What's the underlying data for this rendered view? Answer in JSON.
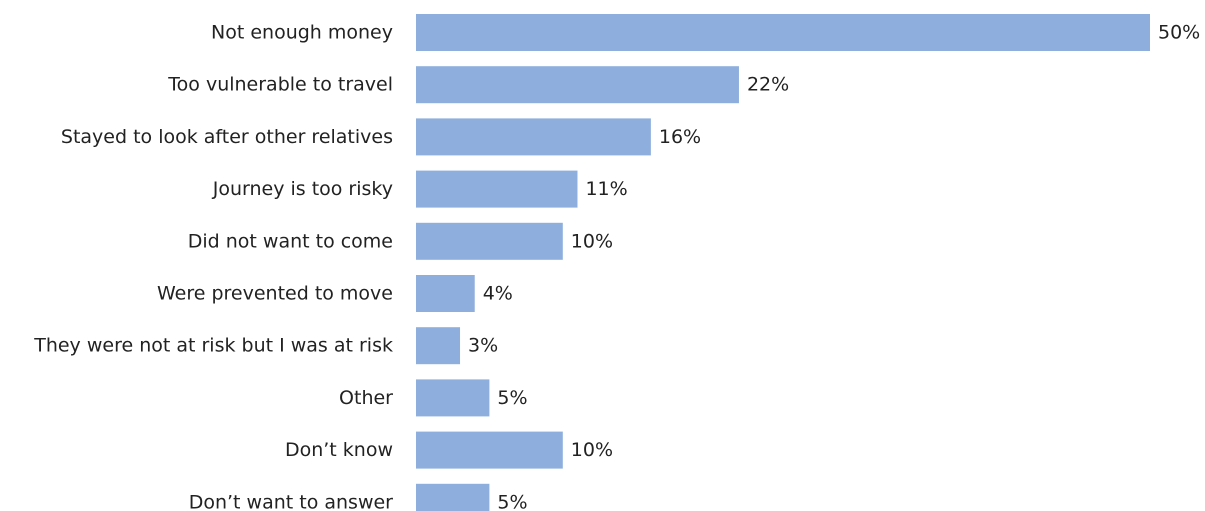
{
  "chart_data": {
    "type": "bar",
    "orientation": "horizontal",
    "categories": [
      "Not enough money",
      "Too vulnerable to travel",
      "Stayed to look after other relatives",
      "Journey is too risky",
      "Did not want to come",
      "Were prevented to move",
      "They were not at risk but I was at risk",
      "Other",
      "Don’t know",
      "Don’t want to answer"
    ],
    "values": [
      50,
      22,
      16,
      11,
      10,
      4,
      3,
      5,
      10,
      5
    ],
    "value_labels": [
      "50%",
      "22%",
      "16%",
      "11%",
      "10%",
      "4%",
      "3%",
      "5%",
      "10%",
      "5%"
    ],
    "unit": "%",
    "xlim": [
      0,
      50
    ],
    "grid": false,
    "legend": "none",
    "bar_color": "#8eaedd"
  }
}
